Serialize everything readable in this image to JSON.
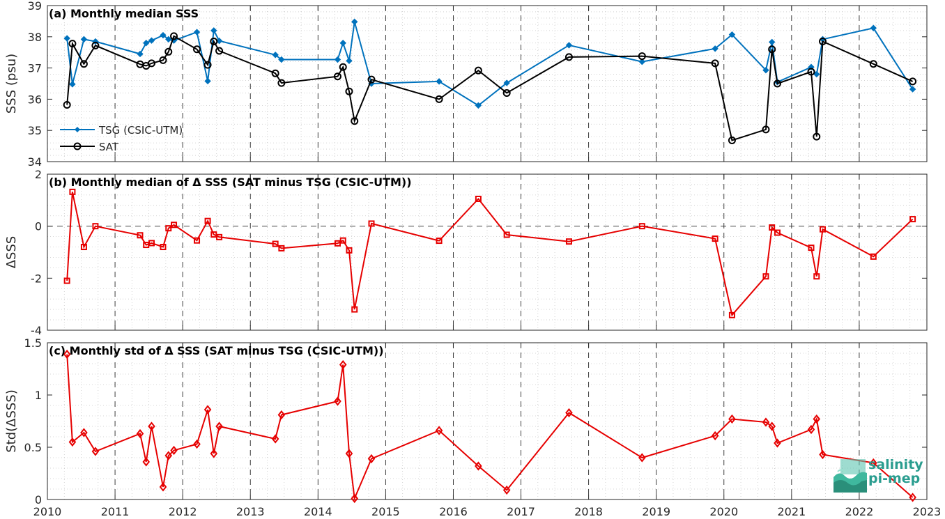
{
  "chart_data": [
    {
      "type": "line",
      "title": "(a) Monthly median SSS",
      "ylabel": "SSS (psu)",
      "xlim": [
        2010,
        2023
      ],
      "ylim": [
        34,
        39
      ],
      "yticks": [
        34,
        35,
        36,
        37,
        38,
        39
      ],
      "legend_position": "lower-left",
      "series": [
        {
          "name": "TSG (CSIC-UTM)",
          "color": "#0072BD",
          "marker": "diamond-filled",
          "x": [
            2010.29,
            2010.37,
            2010.54,
            2010.71,
            2011.37,
            2011.46,
            2011.54,
            2011.71,
            2011.79,
            2011.87,
            2012.21,
            2012.37,
            2012.46,
            2012.54,
            2013.37,
            2013.46,
            2014.29,
            2014.37,
            2014.46,
            2014.54,
            2014.79,
            2015.79,
            2016.37,
            2016.79,
            2017.71,
            2018.79,
            2019.87,
            2020.12,
            2020.62,
            2020.71,
            2020.79,
            2021.29,
            2021.37,
            2021.46,
            2022.21,
            2022.79
          ],
          "y": [
            37.95,
            36.48,
            37.92,
            37.85,
            37.45,
            37.8,
            37.88,
            38.05,
            37.92,
            37.88,
            38.15,
            36.58,
            38.2,
            37.87,
            37.42,
            37.27,
            37.27,
            37.8,
            37.23,
            38.48,
            36.5,
            36.57,
            35.8,
            36.52,
            37.73,
            37.2,
            37.62,
            38.07,
            36.93,
            37.83,
            36.55,
            37.03,
            36.8,
            37.92,
            38.28,
            36.32
          ]
        },
        {
          "name": "SAT",
          "color": "#000000",
          "marker": "circle-open",
          "x": [
            2010.29,
            2010.37,
            2010.54,
            2010.71,
            2011.37,
            2011.46,
            2011.54,
            2011.71,
            2011.79,
            2011.87,
            2012.21,
            2012.37,
            2012.46,
            2012.54,
            2013.37,
            2013.46,
            2014.29,
            2014.37,
            2014.46,
            2014.54,
            2014.79,
            2015.79,
            2016.37,
            2016.79,
            2017.71,
            2018.79,
            2019.87,
            2020.12,
            2020.62,
            2020.71,
            2020.79,
            2021.29,
            2021.37,
            2021.46,
            2022.21,
            2022.79
          ],
          "y": [
            35.82,
            37.78,
            37.13,
            37.72,
            37.12,
            37.07,
            37.15,
            37.25,
            37.52,
            38.02,
            37.6,
            37.1,
            37.85,
            37.55,
            36.83,
            36.52,
            36.73,
            37.03,
            36.25,
            35.3,
            36.63,
            36.0,
            36.92,
            36.2,
            37.35,
            37.38,
            37.15,
            34.68,
            35.03,
            37.6,
            36.5,
            36.88,
            34.8,
            37.85,
            37.13,
            36.57
          ]
        }
      ]
    },
    {
      "type": "line",
      "title": "(b) Monthly median of Δ SSS (SAT minus TSG (CSIC-UTM))",
      "ylabel": "ΔSSS",
      "xlim": [
        2010,
        2023
      ],
      "ylim": [
        -4,
        2
      ],
      "yticks": [
        -4,
        -2,
        0,
        2
      ],
      "zero_line": true,
      "series": [
        {
          "color": "#E60000",
          "marker": "square-open",
          "x": [
            2010.29,
            2010.37,
            2010.54,
            2010.71,
            2011.37,
            2011.46,
            2011.54,
            2011.71,
            2011.79,
            2011.87,
            2012.21,
            2012.37,
            2012.46,
            2012.54,
            2013.37,
            2013.46,
            2014.29,
            2014.37,
            2014.46,
            2014.54,
            2014.79,
            2015.79,
            2016.37,
            2016.79,
            2017.71,
            2018.79,
            2019.87,
            2020.12,
            2020.62,
            2020.71,
            2020.79,
            2021.29,
            2021.37,
            2021.46,
            2022.21,
            2022.79
          ],
          "y": [
            -2.1,
            1.32,
            -0.8,
            0.0,
            -0.35,
            -0.72,
            -0.65,
            -0.8,
            -0.08,
            0.05,
            -0.55,
            0.2,
            -0.32,
            -0.42,
            -0.68,
            -0.85,
            -0.66,
            -0.55,
            -0.93,
            -3.2,
            0.1,
            -0.56,
            1.05,
            -0.33,
            -0.59,
            0.0,
            -0.48,
            -3.42,
            -1.93,
            -0.05,
            -0.25,
            -0.83,
            -1.93,
            -0.12,
            -1.17,
            0.27
          ]
        }
      ]
    },
    {
      "type": "line",
      "title": "(c) Monthly std of Δ SSS (SAT minus TSG (CSIC-UTM))",
      "ylabel": "Std(ΔSSS)",
      "xlabel": "",
      "xlim": [
        2010,
        2023
      ],
      "ylim": [
        0,
        1.5
      ],
      "yticks": [
        0,
        0.5,
        1,
        1.5
      ],
      "xticks": [
        2010,
        2011,
        2012,
        2013,
        2014,
        2015,
        2016,
        2017,
        2018,
        2019,
        2020,
        2021,
        2022,
        2023
      ],
      "series": [
        {
          "color": "#E60000",
          "marker": "diamond-open",
          "x": [
            2010.29,
            2010.37,
            2010.54,
            2010.71,
            2011.37,
            2011.46,
            2011.54,
            2011.71,
            2011.79,
            2011.87,
            2012.21,
            2012.37,
            2012.46,
            2012.54,
            2013.37,
            2013.46,
            2014.29,
            2014.37,
            2014.46,
            2014.54,
            2014.79,
            2015.79,
            2016.37,
            2016.79,
            2017.71,
            2018.79,
            2019.87,
            2020.12,
            2020.62,
            2020.71,
            2020.79,
            2021.29,
            2021.37,
            2021.46,
            2022.21,
            2022.79
          ],
          "y": [
            1.39,
            0.55,
            0.64,
            0.46,
            0.63,
            0.36,
            0.7,
            0.12,
            0.42,
            0.47,
            0.53,
            0.86,
            0.44,
            0.7,
            0.58,
            0.81,
            0.94,
            1.29,
            0.44,
            0.01,
            0.39,
            0.66,
            0.32,
            0.09,
            0.83,
            0.4,
            0.61,
            0.77,
            0.74,
            0.7,
            0.54,
            0.67,
            0.77,
            0.43,
            0.35,
            0.02
          ]
        }
      ]
    }
  ],
  "logo": {
    "line1": "salinity",
    "line2": "pi-mep",
    "color": "#2a9d8f"
  }
}
